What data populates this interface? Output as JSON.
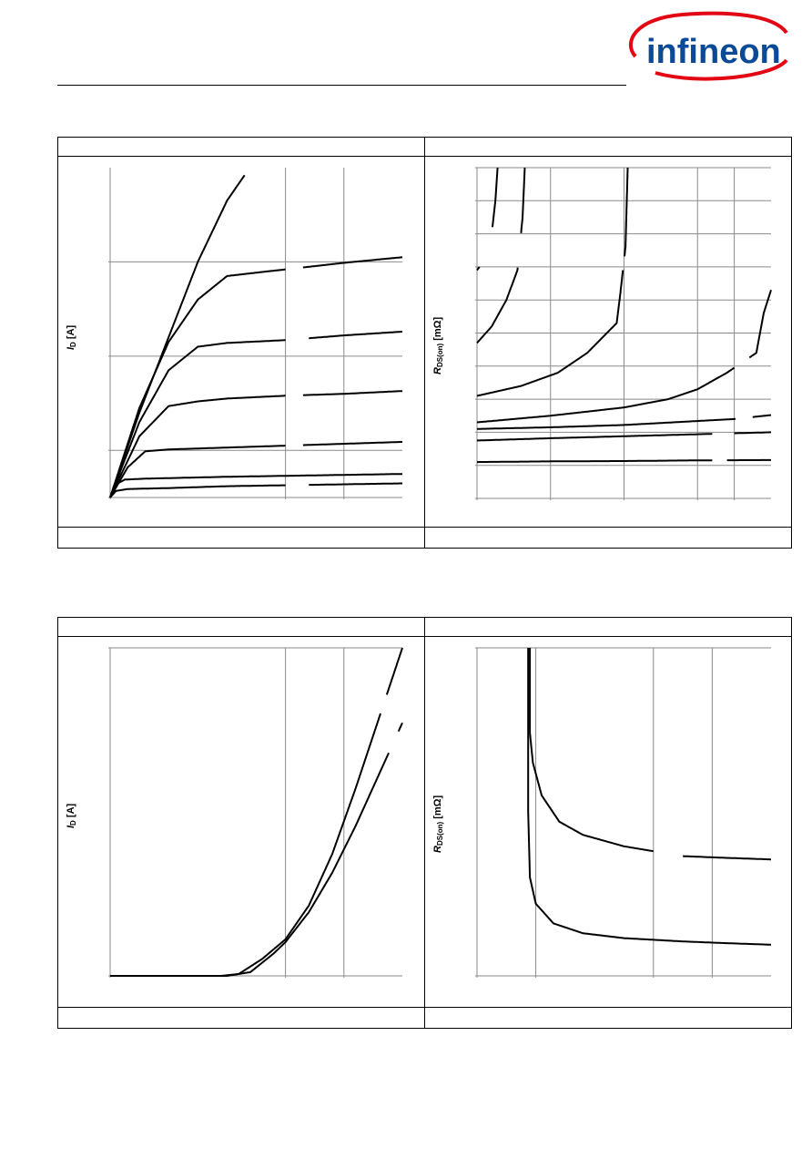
{
  "brand": {
    "logo_text": "infineon",
    "color": "#0a4a97",
    "arc_color": "#e30613"
  },
  "chart_data": [
    {
      "id": "output_characteristics",
      "type": "line",
      "title": "",
      "xlabel": "",
      "ylabel_main": "I",
      "ylabel_sub": "D",
      "ylabel_unit": "[A]",
      "xlim": [
        0,
        5
      ],
      "ylim": [
        0,
        3.5
      ],
      "xgrid": [
        0,
        3,
        4
      ],
      "ygrid": [
        0,
        0.5,
        1.5,
        2.5
      ],
      "series": [
        {
          "gap_x": [
            2.3,
            2.5
          ],
          "points": [
            [
              0,
              0
            ],
            [
              0.5,
              0.9
            ],
            [
              1,
              1.7
            ],
            [
              1.5,
              2.5
            ],
            [
              2,
              3.15
            ],
            [
              2.5,
              3.6
            ]
          ]
        },
        {
          "gap_x": [
            3.0,
            3.3
          ],
          "points": [
            [
              0,
              0
            ],
            [
              0.5,
              0.95
            ],
            [
              1,
              1.65
            ],
            [
              1.5,
              2.1
            ],
            [
              2,
              2.35
            ],
            [
              2.7,
              2.4
            ],
            [
              3,
              2.42
            ],
            [
              4,
              2.49
            ],
            [
              5,
              2.55
            ]
          ]
        },
        {
          "gap_x": [
            3.0,
            3.4
          ],
          "points": [
            [
              0,
              0
            ],
            [
              0.5,
              0.8
            ],
            [
              1,
              1.35
            ],
            [
              1.5,
              1.6
            ],
            [
              2,
              1.64
            ],
            [
              3,
              1.67
            ],
            [
              4,
              1.72
            ],
            [
              5,
              1.76
            ]
          ]
        },
        {
          "gap_x": [
            3.0,
            3.3
          ],
          "points": [
            [
              0,
              0
            ],
            [
              0.5,
              0.65
            ],
            [
              1,
              0.97
            ],
            [
              1.5,
              1.02
            ],
            [
              2,
              1.05
            ],
            [
              3,
              1.08
            ],
            [
              4,
              1.1
            ],
            [
              5,
              1.13
            ]
          ]
        },
        {
          "gap_x": [
            3.0,
            3.3
          ],
          "points": [
            [
              0,
              0
            ],
            [
              0.3,
              0.32
            ],
            [
              0.6,
              0.49
            ],
            [
              1,
              0.51
            ],
            [
              2,
              0.53
            ],
            [
              3,
              0.55
            ],
            [
              4,
              0.57
            ],
            [
              5,
              0.59
            ]
          ]
        },
        {
          "gap_x": [],
          "points": [
            [
              0,
              0
            ],
            [
              0.1,
              0.14
            ],
            [
              0.25,
              0.19
            ],
            [
              0.6,
              0.2
            ],
            [
              2,
              0.22
            ],
            [
              3,
              0.23
            ],
            [
              4,
              0.24
            ],
            [
              5,
              0.25
            ]
          ]
        },
        {
          "gap_x": [
            3.0,
            3.4
          ],
          "points": [
            [
              0,
              0
            ],
            [
              0.1,
              0.07
            ],
            [
              0.3,
              0.09
            ],
            [
              1,
              0.1
            ],
            [
              2,
              0.12
            ],
            [
              3,
              0.13
            ],
            [
              4,
              0.14
            ],
            [
              5,
              0.15
            ]
          ]
        }
      ]
    },
    {
      "id": "drain_source_on_resistance_vs_current",
      "type": "line",
      "title": "",
      "xlabel": "",
      "ylabel_main": "R",
      "ylabel_sub": "DS(on)",
      "ylabel_unit": "[mΩ]",
      "xlim": [
        0,
        4
      ],
      "ylim": [
        0,
        10
      ],
      "xgrid": [
        0,
        1,
        2,
        3,
        3.5
      ],
      "ygrid": [
        0,
        1,
        2,
        3,
        4,
        5,
        6,
        7,
        8,
        9,
        10
      ],
      "series": [
        {
          "gap_y": [
            7.0,
            8.2
          ],
          "points": [
            [
              0,
              6.9
            ],
            [
              0.1,
              7.2
            ],
            [
              0.2,
              8.0
            ],
            [
              0.25,
              9.0
            ],
            [
              0.28,
              10
            ]
          ]
        },
        {
          "gap_y": [
            7.0,
            8.0
          ],
          "points": [
            [
              0,
              4.7
            ],
            [
              0.2,
              5.2
            ],
            [
              0.4,
              6.0
            ],
            [
              0.55,
              6.9
            ],
            [
              0.62,
              8.5
            ],
            [
              0.65,
              10
            ]
          ]
        },
        {
          "gap_y": [
            6.9,
            7.3
          ],
          "points": [
            [
              0,
              3.1
            ],
            [
              0.6,
              3.4
            ],
            [
              1.1,
              3.8
            ],
            [
              1.5,
              4.4
            ],
            [
              1.9,
              5.3
            ],
            [
              1.95,
              6.2
            ],
            [
              2.02,
              7.6
            ],
            [
              2.05,
              10
            ]
          ]
        },
        {
          "gap_x": [
            3.5,
            3.7
          ],
          "points": [
            [
              0,
              2.3
            ],
            [
              1,
              2.5
            ],
            [
              2,
              2.75
            ],
            [
              2.6,
              3.0
            ],
            [
              3,
              3.3
            ],
            [
              3.4,
              3.8
            ],
            [
              3.8,
              4.4
            ],
            [
              3.9,
              5.6
            ],
            [
              4,
              6.3
            ]
          ]
        },
        {
          "gap_x": [
            3.52,
            3.75
          ],
          "points": [
            [
              0,
              2.1
            ],
            [
              1,
              2.15
            ],
            [
              2,
              2.22
            ],
            [
              3,
              2.34
            ],
            [
              3.5,
              2.4
            ],
            [
              4,
              2.52
            ]
          ]
        },
        {
          "gap_x": [
            3.2,
            3.5
          ],
          "points": [
            [
              0,
              1.75
            ],
            [
              1,
              1.82
            ],
            [
              2,
              1.88
            ],
            [
              3,
              1.94
            ],
            [
              4,
              2.0
            ]
          ]
        },
        {
          "gap_x": [
            3.2,
            3.4
          ],
          "points": [
            [
              0,
              1.1
            ],
            [
              1,
              1.12
            ],
            [
              2,
              1.13
            ],
            [
              3,
              1.15
            ],
            [
              4,
              1.16
            ]
          ]
        }
      ]
    },
    {
      "id": "transfer_characteristics",
      "type": "line",
      "title": "",
      "xlabel": "",
      "ylabel_main": "I",
      "ylabel_sub": "D",
      "ylabel_unit": "[A]",
      "xlim": [
        0,
        5
      ],
      "ylim": [
        0,
        3.5
      ],
      "xgrid": [
        0,
        3,
        4
      ],
      "ygrid": [
        0,
        3.5
      ],
      "series": [
        {
          "gap_y": [
            2.8,
            3.0
          ],
          "points": [
            [
              0,
              0
            ],
            [
              1.9,
              0
            ],
            [
              2.2,
              0.02
            ],
            [
              2.6,
              0.18
            ],
            [
              3,
              0.39
            ],
            [
              3.4,
              0.75
            ],
            [
              3.8,
              1.3
            ],
            [
              4.2,
              2.0
            ],
            [
              4.6,
              2.75
            ],
            [
              5,
              3.5
            ]
          ]
        },
        {
          "gap_y": [
            2.38,
            2.6
          ],
          "points": [
            [
              0,
              0
            ],
            [
              2.0,
              0
            ],
            [
              2.4,
              0.04
            ],
            [
              2.8,
              0.24
            ],
            [
              3,
              0.36
            ],
            [
              3.4,
              0.68
            ],
            [
              3.8,
              1.1
            ],
            [
              4.2,
              1.6
            ],
            [
              4.6,
              2.15
            ],
            [
              5,
              2.7
            ]
          ]
        }
      ]
    },
    {
      "id": "drain_source_on_resistance_vs_gate_voltage",
      "type": "line",
      "title": "",
      "xlabel": "",
      "ylabel_main": "R",
      "ylabel_sub": "DS(on)",
      "ylabel_unit": "[mΩ]",
      "xlim": [
        0,
        5
      ],
      "ylim": [
        0,
        10
      ],
      "xgrid": [
        0,
        1,
        3,
        4
      ],
      "ygrid": [
        0,
        10
      ],
      "series": [
        {
          "gap_x": [
            3.0,
            3.5
          ],
          "points": [
            [
              0.9,
              10
            ],
            [
              0.9,
              7.4
            ],
            [
              0.95,
              6.5
            ],
            [
              1.1,
              5.5
            ],
            [
              1.4,
              4.7
            ],
            [
              1.8,
              4.3
            ],
            [
              2.5,
              3.95
            ],
            [
              3.5,
              3.65
            ],
            [
              4.2,
              3.6
            ],
            [
              5,
              3.55
            ]
          ]
        },
        {
          "gap_x": [],
          "points": [
            [
              0.87,
              10
            ],
            [
              0.87,
              5
            ],
            [
              0.9,
              3.0
            ],
            [
              1.0,
              2.2
            ],
            [
              1.3,
              1.6
            ],
            [
              1.8,
              1.3
            ],
            [
              2.5,
              1.15
            ],
            [
              3.5,
              1.05
            ],
            [
              4.2,
              1.0
            ],
            [
              5,
              0.95
            ]
          ]
        }
      ]
    }
  ]
}
